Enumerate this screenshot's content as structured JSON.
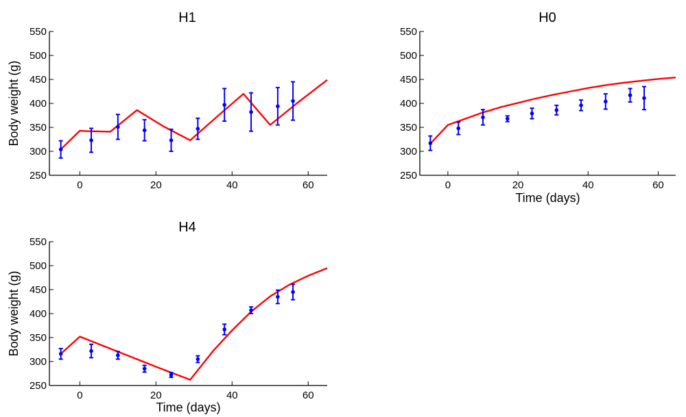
{
  "colors": {
    "model_line": "#ff0000",
    "data_points": "#0000ff",
    "axis": "#000000"
  },
  "chart_data": [
    {
      "type": "line",
      "title": "H1",
      "xlabel": "",
      "ylabel": "Body weight (g)",
      "xlim": [
        -8,
        65
      ],
      "ylim": [
        250,
        550
      ],
      "xticks": [
        "0",
        "20",
        "40",
        "60"
      ],
      "yticks": [
        "250",
        "300",
        "350",
        "400",
        "450",
        "500",
        "550"
      ],
      "grid": false,
      "series": [
        {
          "kind": "model-curve",
          "points": [
            [
              -5,
              304
            ],
            [
              0,
              343
            ],
            [
              2,
              342
            ],
            [
              8,
              341
            ],
            [
              15,
              386
            ],
            [
              22,
              352
            ],
            [
              29,
              323
            ],
            [
              36,
              372
            ],
            [
              43,
              420
            ],
            [
              50,
              355
            ],
            [
              57,
              400
            ],
            [
              65,
              449
            ]
          ]
        },
        {
          "kind": "observed-mean-with-error",
          "points": [
            {
              "x": -5,
              "y": 304,
              "err": 18
            },
            {
              "x": 3,
              "y": 323,
              "err": 25
            },
            {
              "x": 10,
              "y": 351,
              "err": 26
            },
            {
              "x": 17,
              "y": 344,
              "err": 22
            },
            {
              "x": 24,
              "y": 323,
              "err": 23
            },
            {
              "x": 31,
              "y": 347,
              "err": 22
            },
            {
              "x": 38,
              "y": 397,
              "err": 34
            },
            {
              "x": 45,
              "y": 382,
              "err": 40
            },
            {
              "x": 52,
              "y": 394,
              "err": 39
            },
            {
              "x": 56,
              "y": 405,
              "err": 40
            }
          ]
        }
      ]
    },
    {
      "type": "line",
      "title": "H0",
      "xlabel": "Time (days)",
      "ylabel": "",
      "xlim": [
        -8,
        65
      ],
      "ylim": [
        250,
        550
      ],
      "xticks": [
        "0",
        "20",
        "40",
        "60"
      ],
      "yticks": [
        "250",
        "300",
        "350",
        "400",
        "450",
        "500",
        "550"
      ],
      "grid": false,
      "series": [
        {
          "kind": "model-curve",
          "points": [
            [
              -5,
              316
            ],
            [
              0,
              355
            ],
            [
              5,
              368
            ],
            [
              10,
              381
            ],
            [
              15,
              392
            ],
            [
              20,
              401
            ],
            [
              25,
              410
            ],
            [
              30,
              418
            ],
            [
              35,
              425
            ],
            [
              40,
              432
            ],
            [
              45,
              438
            ],
            [
              50,
              443
            ],
            [
              55,
              447
            ],
            [
              60,
              451
            ],
            [
              65,
              454
            ]
          ]
        },
        {
          "kind": "observed-mean-with-error",
          "points": [
            {
              "x": -5,
              "y": 317,
              "err": 15
            },
            {
              "x": 3,
              "y": 348,
              "err": 13
            },
            {
              "x": 10,
              "y": 371,
              "err": 16
            },
            {
              "x": 17,
              "y": 368,
              "err": 6
            },
            {
              "x": 24,
              "y": 379,
              "err": 11
            },
            {
              "x": 31,
              "y": 386,
              "err": 10
            },
            {
              "x": 38,
              "y": 396,
              "err": 11
            },
            {
              "x": 45,
              "y": 404,
              "err": 16
            },
            {
              "x": 52,
              "y": 417,
              "err": 14
            },
            {
              "x": 56,
              "y": 411,
              "err": 24
            }
          ]
        }
      ]
    },
    {
      "type": "line",
      "title": "H4",
      "xlabel": "Time (days)",
      "ylabel": "Body weight (g)",
      "xlim": [
        -8,
        65
      ],
      "ylim": [
        250,
        550
      ],
      "xticks": [
        "0",
        "20",
        "40",
        "60"
      ],
      "yticks": [
        "250",
        "300",
        "350",
        "400",
        "450",
        "500",
        "550"
      ],
      "grid": false,
      "series": [
        {
          "kind": "model-curve",
          "points": [
            [
              -5,
              316
            ],
            [
              0,
              352
            ],
            [
              7,
              330
            ],
            [
              14,
              308
            ],
            [
              21,
              286
            ],
            [
              29,
              262
            ],
            [
              35,
              322
            ],
            [
              40,
              365
            ],
            [
              45,
              404
            ],
            [
              50,
              436
            ],
            [
              55,
              460
            ],
            [
              60,
              479
            ],
            [
              65,
              495
            ]
          ]
        },
        {
          "kind": "observed-mean-with-error",
          "points": [
            {
              "x": -5,
              "y": 316,
              "err": 11
            },
            {
              "x": 3,
              "y": 322,
              "err": 14
            },
            {
              "x": 10,
              "y": 313,
              "err": 8
            },
            {
              "x": 17,
              "y": 285,
              "err": 7
            },
            {
              "x": 24,
              "y": 272,
              "err": 5
            },
            {
              "x": 31,
              "y": 305,
              "err": 7
            },
            {
              "x": 38,
              "y": 367,
              "err": 11
            },
            {
              "x": 45,
              "y": 407,
              "err": 7
            },
            {
              "x": 52,
              "y": 435,
              "err": 14
            },
            {
              "x": 56,
              "y": 445,
              "err": 16
            }
          ]
        }
      ]
    }
  ]
}
